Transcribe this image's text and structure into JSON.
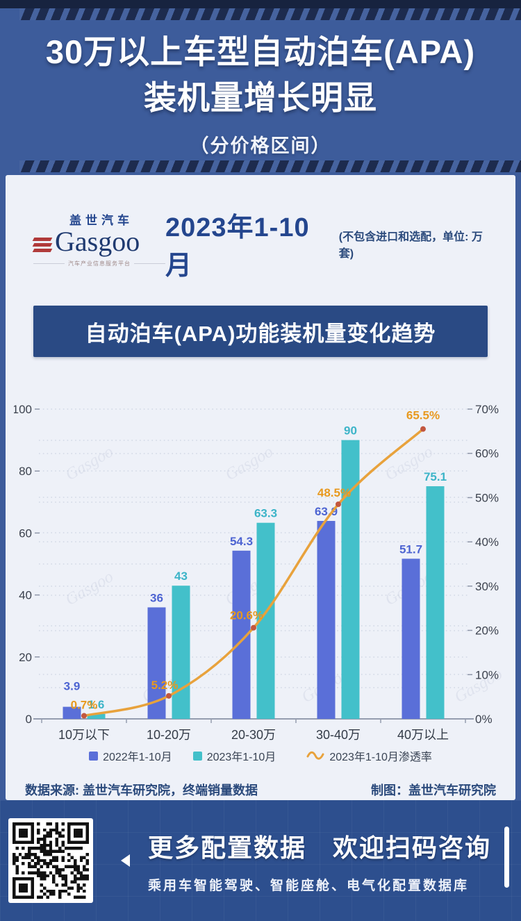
{
  "header": {
    "title_line1": "30万以上车型自动泊车(APA)",
    "title_line2": "装机量增长明显",
    "subtitle": "（分价格区间）"
  },
  "card": {
    "logo": {
      "cn": "盖世汽车",
      "en": "Gasgoo",
      "tagline": "汽车产业信息服务平台"
    },
    "period_title": "2023年1-10月",
    "period_note": "(不包含进口和选配，单位: 万套)",
    "chart_banner": "自动泊车(APA)功能装机量变化趋势",
    "source_left": "数据来源: 盖世汽车研究院，终端销量数据",
    "source_right": "制图：盖世汽车研究院"
  },
  "chart_data": {
    "type": "bar",
    "title": "自动泊车(APA)功能装机量变化趋势",
    "categories": [
      "10万以下",
      "10-20万",
      "20-30万",
      "30-40万",
      "40万以上"
    ],
    "series": [
      {
        "name": "2022年1-10月",
        "type": "bar",
        "axis": "left",
        "color": "#5a6fd8",
        "label_color": "#4d64d2",
        "values": [
          3.9,
          36,
          54.3,
          63.9,
          51.7
        ],
        "labels": [
          "3.9",
          "36",
          "54.3",
          "63.9",
          "51.7"
        ]
      },
      {
        "name": "2023年1-10月",
        "type": "bar",
        "axis": "left",
        "color": "#43c0ca",
        "label_color": "#3cb4c8",
        "values": [
          1.6,
          43,
          63.3,
          90,
          75.1
        ],
        "labels": [
          "1.6",
          "43",
          "63.3",
          "90",
          "75.1"
        ]
      },
      {
        "name": "2023年1-10月渗透率",
        "type": "line",
        "axis": "right",
        "color": "#e8a23c",
        "dot_color": "#c2573f",
        "label_color": "#e8991f",
        "values": [
          0.7,
          5.2,
          20.6,
          48.5,
          65.5
        ],
        "labels": [
          "0.7%",
          "5.2%",
          "20.6%",
          "48.5%",
          "65.5%"
        ]
      }
    ],
    "left_axis": {
      "min": 0,
      "max": 100,
      "ticks": [
        "0",
        "20",
        "40",
        "60",
        "80",
        "100"
      ]
    },
    "right_axis": {
      "min": 0,
      "max": 70,
      "ticks": [
        "0%",
        "10%",
        "20%",
        "30%",
        "40%",
        "50%",
        "60%",
        "70%"
      ]
    },
    "grid": true,
    "legend_position": "bottom",
    "watermark": "Gasgoo",
    "xlabel": "",
    "ylabel": ""
  },
  "footer_banner": {
    "title": "更多配置数据　欢迎扫码咨询",
    "subtitle": "乘用车智能驾驶、智能座舱、电气化配置数据库"
  },
  "colors": {
    "page_blue": "#3d5c9b",
    "dark_navy": "#17233f",
    "card_bg": "#eef1f8",
    "banner_blue": "#2a4a84",
    "footer_blue": "#2d4f8e",
    "bar_2022": "#5a6fd8",
    "bar_2023": "#43c0ca",
    "line_orange": "#e8a23c",
    "text_navy": "#2b4a7c"
  }
}
